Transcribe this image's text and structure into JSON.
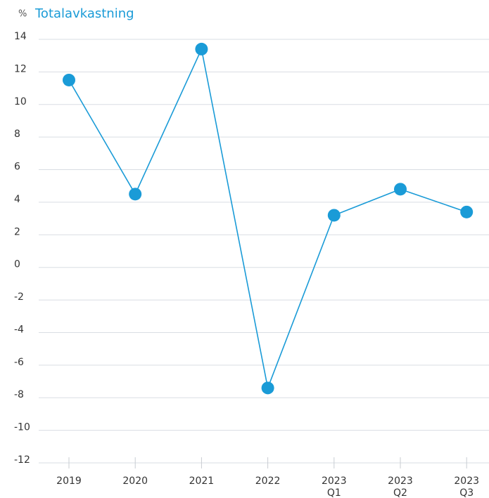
{
  "chart_data": {
    "type": "line",
    "title": "Totalavkastning",
    "y_label": "%",
    "categories": [
      [
        "2019"
      ],
      [
        "2020"
      ],
      [
        "2021"
      ],
      [
        "2022"
      ],
      [
        "2023",
        "Q1"
      ],
      [
        "2023",
        "Q2"
      ],
      [
        "2023",
        "Q3"
      ]
    ],
    "series": [
      {
        "name": "Totalavkastning",
        "color": "#1a9bd7",
        "values": [
          11.5,
          4.5,
          13.4,
          -7.4,
          3.2,
          4.8,
          3.4
        ]
      }
    ],
    "ylim": [
      -12,
      14
    ],
    "yticks": [
      -12,
      -10,
      -8,
      -6,
      -4,
      -2,
      0,
      2,
      4,
      6,
      8,
      10,
      12,
      14
    ],
    "grid": true
  }
}
